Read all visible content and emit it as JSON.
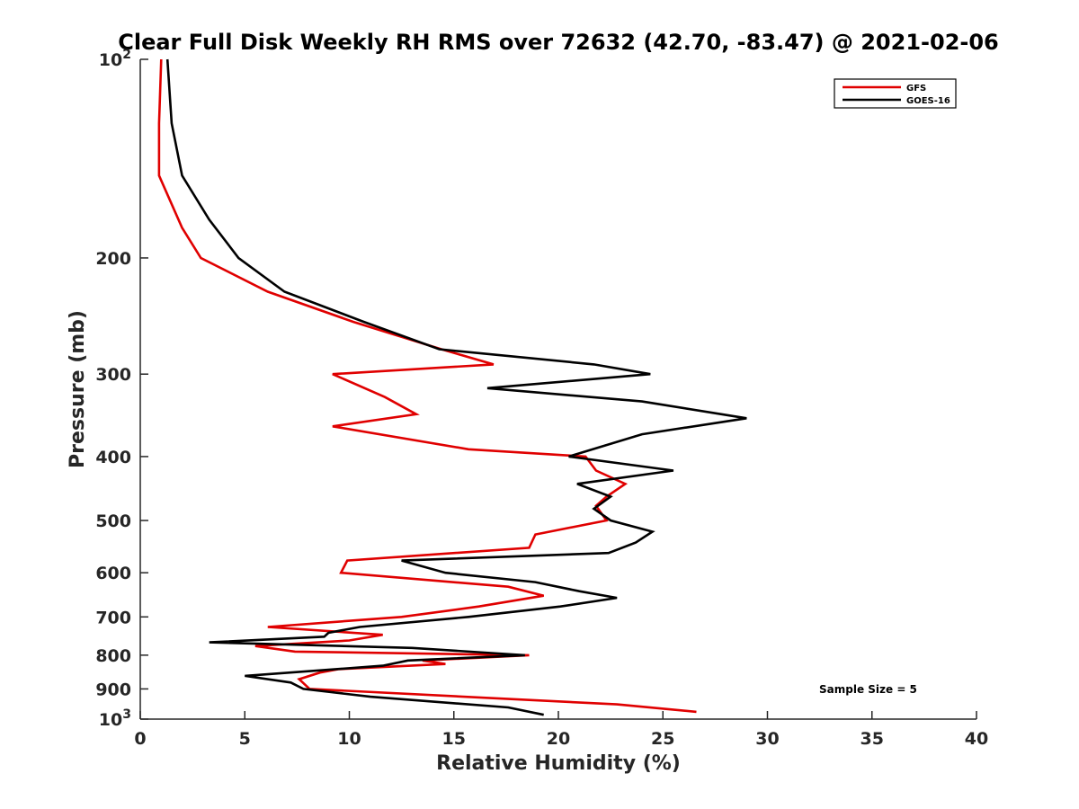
{
  "chart_data": {
    "type": "line",
    "title": "Clear Full Disk Weekly RH RMS over 72632 (42.70, -83.47) @ 2021-02-06",
    "xlabel": "Relative Humidity (%)",
    "ylabel": "Pressure (mb)",
    "xlim": [
      0,
      40
    ],
    "ylim": [
      100,
      1000
    ],
    "y_scale": "log",
    "y_reversed": true,
    "x_ticks": [
      "0",
      "5",
      "10",
      "15",
      "20",
      "25",
      "30",
      "35",
      "40"
    ],
    "y_ticks": [
      {
        "value": 100,
        "base": "10",
        "exp": "2"
      },
      {
        "value": 200,
        "label": "200"
      },
      {
        "value": 300,
        "label": "300"
      },
      {
        "value": 400,
        "label": "400"
      },
      {
        "value": 500,
        "label": "500"
      },
      {
        "value": 600,
        "label": "600"
      },
      {
        "value": 700,
        "label": "700"
      },
      {
        "value": 800,
        "label": "800"
      },
      {
        "value": 900,
        "label": "900"
      },
      {
        "value": 1000,
        "base": "10",
        "exp": "3"
      }
    ],
    "legend": {
      "position": "top-right"
    },
    "grid": false,
    "annotation": "Sample Size = 5",
    "series": [
      {
        "name": "GFS",
        "color": "#e00000",
        "points": [
          [
            1.0,
            100
          ],
          [
            0.9,
            125
          ],
          [
            0.9,
            150
          ],
          [
            2.0,
            180
          ],
          [
            2.9,
            200
          ],
          [
            6.1,
            225
          ],
          [
            10.2,
            250
          ],
          [
            14.4,
            275
          ],
          [
            16.9,
            290
          ],
          [
            9.2,
            300
          ],
          [
            11.7,
            325
          ],
          [
            13.2,
            345
          ],
          [
            9.2,
            360
          ],
          [
            15.7,
            390
          ],
          [
            21.3,
            400
          ],
          [
            21.8,
            420
          ],
          [
            23.2,
            440
          ],
          [
            22.3,
            460
          ],
          [
            21.8,
            475
          ],
          [
            22.3,
            500
          ],
          [
            18.9,
            525
          ],
          [
            18.6,
            550
          ],
          [
            9.9,
            575
          ],
          [
            9.6,
            600
          ],
          [
            17.6,
            630
          ],
          [
            19.3,
            650
          ],
          [
            16.2,
            675
          ],
          [
            12.5,
            700
          ],
          [
            6.1,
            725
          ],
          [
            11.6,
            745
          ],
          [
            10.0,
            760
          ],
          [
            5.5,
            775
          ],
          [
            7.4,
            790
          ],
          [
            18.6,
            800
          ],
          [
            13.5,
            815
          ],
          [
            14.6,
            825
          ],
          [
            9.5,
            840
          ],
          [
            8.6,
            850
          ],
          [
            7.6,
            870
          ],
          [
            8.1,
            900
          ],
          [
            22.8,
            950
          ],
          [
            26.6,
            975
          ]
        ]
      },
      {
        "name": "GOES-16",
        "color": "#000000",
        "points": [
          [
            1.3,
            100
          ],
          [
            1.5,
            125
          ],
          [
            2.0,
            150
          ],
          [
            3.3,
            175
          ],
          [
            4.7,
            200
          ],
          [
            6.9,
            225
          ],
          [
            10.7,
            250
          ],
          [
            14.3,
            275
          ],
          [
            21.7,
            290
          ],
          [
            24.4,
            300
          ],
          [
            16.6,
            315
          ],
          [
            24.0,
            330
          ],
          [
            29.0,
            350
          ],
          [
            24.0,
            370
          ],
          [
            20.5,
            400
          ],
          [
            25.5,
            420
          ],
          [
            20.9,
            440
          ],
          [
            22.5,
            460
          ],
          [
            21.7,
            480
          ],
          [
            22.5,
            500
          ],
          [
            24.5,
            520
          ],
          [
            23.7,
            540
          ],
          [
            22.4,
            560
          ],
          [
            12.5,
            575
          ],
          [
            14.6,
            600
          ],
          [
            18.9,
            620
          ],
          [
            21.0,
            640
          ],
          [
            22.8,
            655
          ],
          [
            20.1,
            675
          ],
          [
            15.7,
            700
          ],
          [
            10.5,
            725
          ],
          [
            9.0,
            740
          ],
          [
            8.8,
            750
          ],
          [
            3.3,
            765
          ],
          [
            13.0,
            780
          ],
          [
            18.4,
            800
          ],
          [
            12.8,
            815
          ],
          [
            11.6,
            830
          ],
          [
            5.0,
            860
          ],
          [
            7.2,
            880
          ],
          [
            7.8,
            900
          ],
          [
            11.0,
            925
          ],
          [
            17.6,
            960
          ],
          [
            19.3,
            985
          ]
        ]
      }
    ]
  }
}
